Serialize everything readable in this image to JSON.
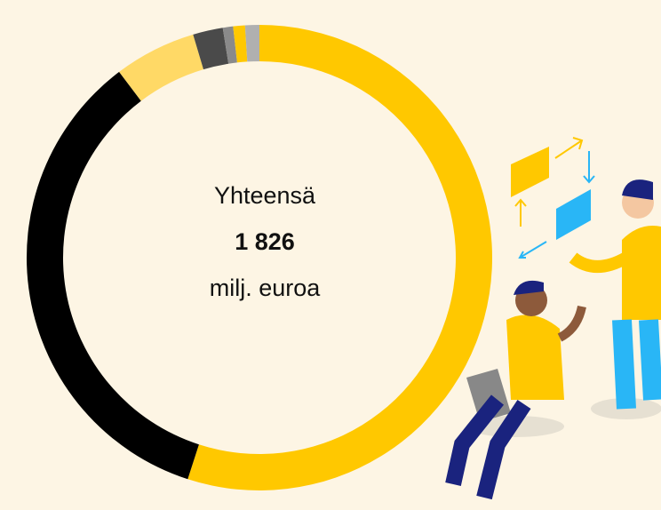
{
  "chart_data": {
    "type": "donut",
    "values": [
      1004,
      634,
      104,
      38,
      13,
      15,
      18
    ],
    "colors": [
      "#ffc800",
      "#000000",
      "#ffd966",
      "#4a4a4a",
      "#8a8a8a",
      "#ffc800",
      "#b0b0b0"
    ],
    "center_label": "Yhteensä",
    "total": {
      "value": 1826,
      "label": "1 826"
    },
    "unit": "milj. euroa"
  }
}
